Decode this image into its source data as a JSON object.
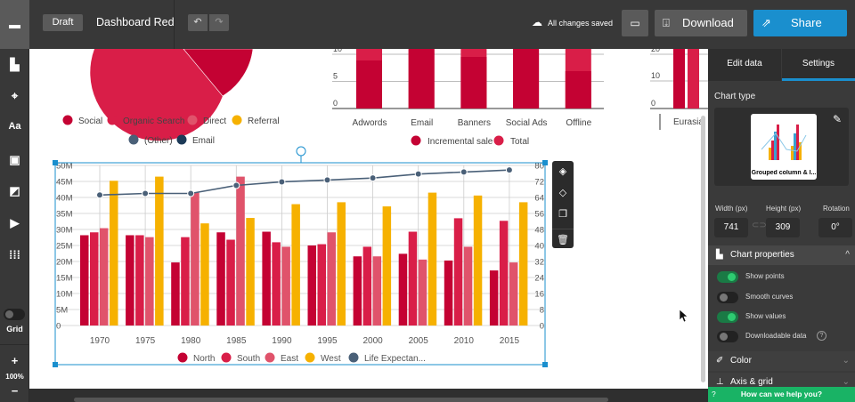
{
  "header": {
    "draft": "Draft",
    "title": "Dashboard Red",
    "status": "All changes saved",
    "download": "Download",
    "share": "Share",
    "accent": "#1a8fce"
  },
  "left_toolbar": {
    "grid_label": "Grid",
    "grid_on": false,
    "zoom": "100%",
    "zoom_in": "+",
    "zoom_out": "−",
    "icons": [
      "tray-icon",
      "chart-icon",
      "map-icon",
      "text-icon",
      "image-icon",
      "shapes-icon",
      "video-icon",
      "grid-apps-icon"
    ]
  },
  "pie_legend": [
    "Social",
    "Organic Search",
    "Direct",
    "Referral",
    "(Other)",
    "Email"
  ],
  "pie_colors": [
    "#c40233",
    "#d91e48",
    "#e0536b",
    "#f6b100",
    "#4a6078",
    "#1c3a57"
  ],
  "bar_chart": {
    "categories": [
      "Adwords",
      "Email",
      "Banners",
      "Social Ads",
      "Offline"
    ],
    "yticks": [
      "0",
      "5",
      "10"
    ],
    "legend": [
      "Incremental sale",
      "Total"
    ]
  },
  "third_chart": {
    "yticks": [
      "0",
      "10",
      "20"
    ],
    "category": "Eurasia"
  },
  "chart_data": {
    "type": "bar+line",
    "categories": [
      "1970",
      "1975",
      "1980",
      "1985",
      "1990",
      "1995",
      "2000",
      "2005",
      "2010",
      "2015"
    ],
    "left_axis": {
      "ticks": [
        "0",
        "5M",
        "10M",
        "15M",
        "20M",
        "25M",
        "30M",
        "35M",
        "40M",
        "45M",
        "50M"
      ],
      "range": [
        0,
        50000000
      ]
    },
    "right_axis": {
      "ticks": [
        "0",
        "8",
        "16",
        "24",
        "32",
        "40",
        "48",
        "56",
        "64",
        "72",
        "80"
      ],
      "range": [
        0,
        80
      ]
    },
    "grid": true,
    "legend_position": "bottom",
    "series": [
      {
        "name": "North",
        "type": "bar",
        "color": "#c40233",
        "values": [
          28.2,
          28.2,
          19.7,
          29.1,
          29.3,
          25.0,
          21.6,
          22.4,
          20.3,
          17.2
        ]
      },
      {
        "name": "South",
        "type": "bar",
        "color": "#d91e48",
        "values": [
          29.1,
          28.2,
          27.6,
          26.8,
          26.0,
          25.4,
          24.6,
          29.3,
          33.5,
          32.7
        ]
      },
      {
        "name": "East",
        "type": "bar",
        "color": "#e0536b",
        "values": [
          30.4,
          27.6,
          41.5,
          46.5,
          24.6,
          29.1,
          21.6,
          20.6,
          24.6,
          19.7
        ]
      },
      {
        "name": "West",
        "type": "bar",
        "color": "#f6b100",
        "values": [
          45.2,
          46.5,
          31.9,
          33.6,
          37.9,
          38.5,
          37.2,
          41.5,
          40.6,
          38.5
        ]
      },
      {
        "name": "Life Expectan...",
        "type": "line",
        "axis": "right",
        "color": "#4a6078",
        "values": [
          65.2,
          66,
          66,
          70,
          71.8,
          72.7,
          73.7,
          75.7,
          76.7,
          77.7
        ]
      }
    ],
    "value_unit": "M"
  },
  "panel": {
    "tabs": [
      "Edit data",
      "Settings"
    ],
    "active_tab": "Settings",
    "chart_type_label": "Chart type",
    "chart_type": "Grouped column & l...",
    "width_label": "Width (px)",
    "height_label": "Height (px)",
    "rotation_label": "Rotation",
    "width": "741",
    "height": "309",
    "rotation": "0°",
    "chart_properties": "Chart properties",
    "toggles": [
      {
        "label": "Show points",
        "on": true
      },
      {
        "label": "Smooth curves",
        "on": false
      },
      {
        "label": "Show values",
        "on": true
      },
      {
        "label": "Downloadable data",
        "on": false
      }
    ],
    "color": "Color",
    "axis_grid": "Axis & grid",
    "help": "How can we help you?",
    "help_icon": "?"
  }
}
